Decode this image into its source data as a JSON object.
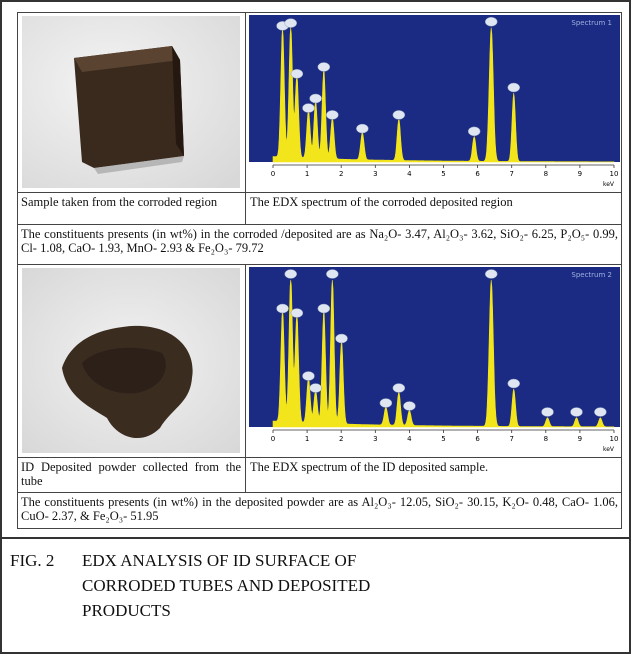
{
  "figure": {
    "rows": [
      {
        "sample_caption": "Sample taken from the corroded region",
        "spectrum_caption": "The EDX spectrum of the corroded deposited region",
        "spectrum_label": "Spectrum 1",
        "constituents": "The constituents presents (in wt%) in the corroded /deposited are as Na₂O- 3.47, Al₂O₃- 3.62, SiO₂- 6.25, P₂O₅- 0.99, Cl- 1.08, CaO- 1.93, MnO- 2.93 & Fe₂O₃- 79.72"
      },
      {
        "sample_caption": "ID Deposited powder collected from the tube",
        "spectrum_caption": "The EDX spectrum of the ID deposited sample.",
        "spectrum_label": "Spectrum 2",
        "constituents": "The constituents presents (in wt%) in the deposited powder are as Al₂O₃- 12.05, SiO₂- 30.15, K₂O- 0.48, CaO- 1.06, CuO- 2.37, & Fe₂O₃- 51.95"
      }
    ],
    "spectrum_axis": {
      "ticks": [
        0,
        1,
        2,
        3,
        4,
        5,
        6,
        7,
        8,
        9,
        10
      ],
      "unit": "keV"
    },
    "caption": {
      "label": "FIG. 2",
      "text": "EDX ANALYSIS OF ID SURFACE OF CORRODED TUBES AND DEPOSITED PRODUCTS"
    }
  }
}
